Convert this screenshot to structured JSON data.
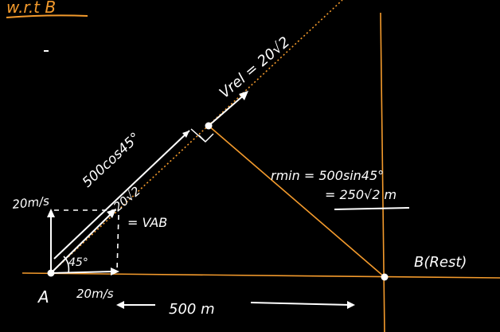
{
  "title": "w.r.t B",
  "labels": {
    "vrel": "Vrel = 20√2",
    "cos_length": "500cos45°",
    "rmin_line1": "rmin = 500sin45°",
    "rmin_line2": "= 250√2 m",
    "v_ab_value": "20√2",
    "v_ab_name": "= VAB",
    "vertical_speed": "20m/s",
    "horizontal_speed": "20m/s",
    "angle": "45°",
    "point_a": "A",
    "point_b": "B(Rest)",
    "distance": "500 m"
  },
  "colors": {
    "background": "#000000",
    "ink": "#ffffff",
    "accent": "#f39a2c"
  }
}
